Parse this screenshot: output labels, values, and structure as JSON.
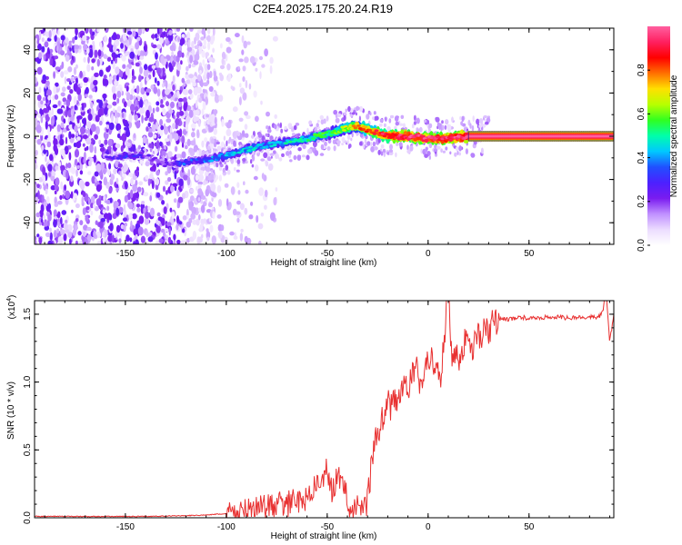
{
  "chart_data": [
    {
      "type": "heatmap",
      "title": "C2E4.2025.175.20.24.R19",
      "xlabel": "Height of straight line (km)",
      "ylabel": "Frequency (Hz)",
      "xlim": [
        -195,
        92
      ],
      "ylim": [
        -50,
        50
      ],
      "xticks": [
        "-150",
        "-100",
        "-50",
        "0",
        "50"
      ],
      "yticks": [
        "-40",
        "-20",
        "0",
        "20",
        "40"
      ],
      "colorbar": {
        "label": "Normalized spectral amplitude",
        "range": [
          0,
          1
        ],
        "ticks": [
          "0.0",
          "0.2",
          "0.4",
          "0.6",
          "0.8"
        ],
        "colors": [
          "#ffffff",
          "#ecdcff",
          "#c090ff",
          "#7a1cf0",
          "#4c20ff",
          "#2050ff",
          "#00c8ff",
          "#00ffaa",
          "#30ff20",
          "#b8ff00",
          "#ffe000",
          "#ff7000",
          "#ff0000",
          "#ff2060",
          "#ff60a0"
        ]
      },
      "ridge": {
        "x": [
          -160,
          -150,
          -140,
          -130,
          -120,
          -110,
          -100,
          -90,
          -80,
          -70,
          -60,
          -50,
          -40,
          -35,
          -30,
          -20,
          -10,
          0,
          10,
          20,
          40,
          60,
          80,
          92
        ],
        "y": [
          -10,
          -9,
          -9,
          -13,
          -12,
          -11,
          -9,
          -6,
          -4,
          -3,
          -1,
          1,
          4,
          5,
          3,
          0,
          0,
          -1,
          -1,
          0,
          0,
          0,
          0,
          0
        ],
        "peak": [
          0.18,
          0.3,
          0.2,
          0.2,
          0.33,
          0.36,
          0.4,
          0.42,
          0.42,
          0.45,
          0.5,
          0.55,
          0.65,
          0.75,
          0.8,
          0.9,
          0.95,
          0.95,
          0.95,
          1,
          1,
          1,
          1,
          1
        ]
      }
    },
    {
      "type": "line",
      "xlabel": "Height of straight line (km)",
      "ylabel": "SNR (10 * v/v)",
      "yscale_label": "(x10",
      "yscale_exp": "4",
      "xlim": [
        -195,
        92
      ],
      "ylim": [
        0,
        1.6
      ],
      "xticks": [
        "-150",
        "-100",
        "-50",
        "0",
        "50"
      ],
      "yticks": [
        "0.0",
        "0.5",
        "1.0",
        "1.5"
      ],
      "color": "#e83030",
      "series": [
        {
          "x": [
            -195,
            -180,
            -160,
            -140,
            -120,
            -110,
            -100,
            -95,
            -90,
            -85,
            -80,
            -75,
            -70,
            -65,
            -60,
            -55,
            -52,
            -50,
            -48,
            -45,
            -42,
            -40,
            -38,
            -35,
            -32,
            -30,
            -28,
            -26,
            -24,
            -22,
            -20,
            -18,
            -16,
            -14,
            -12,
            -10,
            -8,
            -6,
            -4,
            -2,
            0,
            2,
            4,
            6,
            8,
            10,
            11,
            12,
            14,
            16,
            18,
            20,
            22,
            24,
            26,
            28,
            30,
            33,
            36,
            40,
            45,
            50,
            55,
            60,
            65,
            70,
            75,
            80,
            85,
            87,
            88,
            90,
            92
          ],
          "y": [
            0.01,
            0.01,
            0.01,
            0.01,
            0.015,
            0.02,
            0.03,
            0.04,
            0.05,
            0.06,
            0.08,
            0.1,
            0.1,
            0.12,
            0.15,
            0.25,
            0.3,
            0.35,
            0.2,
            0.3,
            0.25,
            0.12,
            0.08,
            0.07,
            0.08,
            0.12,
            0.4,
            0.6,
            0.65,
            0.75,
            0.85,
            0.8,
            0.9,
            0.85,
            1.0,
            0.95,
            1.05,
            1.1,
            1.0,
            1.05,
            1.15,
            1.2,
            1.1,
            1.0,
            1.3,
            1.75,
            1.25,
            1.15,
            1.2,
            1.1,
            1.3,
            1.4,
            1.2,
            1.35,
            1.3,
            1.4,
            1.38,
            1.45,
            1.47,
            1.46,
            1.48,
            1.47,
            1.47,
            1.48,
            1.48,
            1.47,
            1.48,
            1.48,
            1.48,
            1.55,
            1.7,
            1.3,
            1.5
          ]
        }
      ]
    }
  ]
}
